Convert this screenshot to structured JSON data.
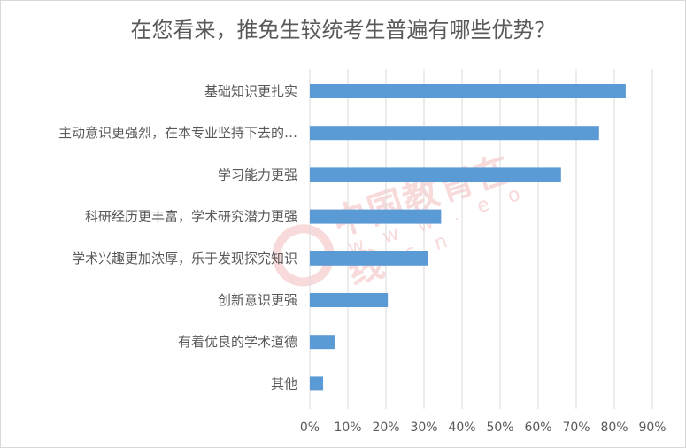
{
  "chart_data": {
    "type": "bar",
    "orientation": "horizontal",
    "title": "在您看来，推免生较统考生普遍有哪些优势？",
    "categories": [
      "基础知识更扎实",
      "主动意识更强烈，在本专业坚持下去的…",
      "学习能力更强",
      "科研经历更丰富，学术研究潜力更强",
      "学术兴趣更加浓厚，乐于发现探究知识",
      "创新意识更强",
      "有着优良的学术道德",
      "其他"
    ],
    "values": [
      83,
      76,
      66,
      34.5,
      31,
      20.5,
      6.5,
      3.5
    ],
    "xlim": [
      0,
      90
    ],
    "xticks": [
      "0%",
      "10%",
      "20%",
      "30%",
      "40%",
      "50%",
      "60%",
      "70%",
      "80%",
      "90%"
    ],
    "value_format": "percent",
    "bar_color": "#5b9bd5",
    "grid": "vertical",
    "legend": "none"
  },
  "watermark": {
    "text": "中国教育在线",
    "url": "w w w . e o l . c n"
  },
  "colors": {
    "text": "#595959",
    "grid": "#d9d9d9",
    "bar": "#5b9bd5",
    "watermark": "#e05a5a"
  }
}
